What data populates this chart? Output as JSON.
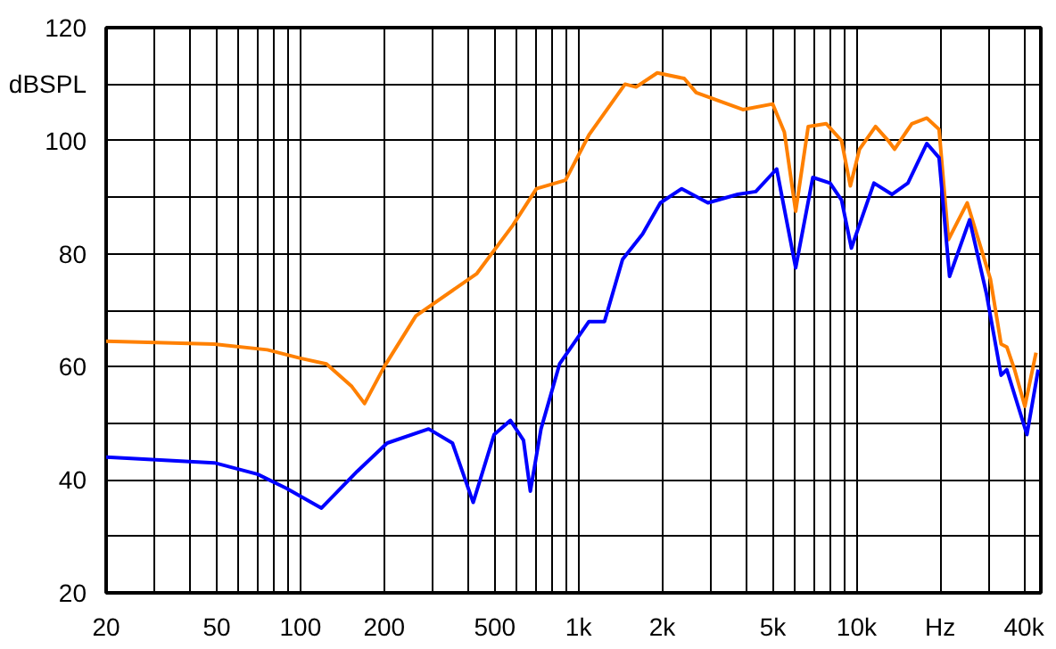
{
  "chart_data": {
    "type": "line",
    "ylabel": "dBSPL",
    "log": "x",
    "grid": true,
    "line_style": "solid",
    "marker": "none",
    "xlim": [
      20,
      46000
    ],
    "ylim": [
      20,
      120
    ],
    "xticks": [
      20,
      {
        "value": 30,
        "label": null
      },
      {
        "value": 40,
        "label": null
      },
      50,
      {
        "value": 60,
        "label": null
      },
      {
        "value": 70,
        "label": null
      },
      {
        "value": 80,
        "label": null
      },
      {
        "value": 90,
        "label": null
      },
      100,
      200,
      {
        "value": 300,
        "label": null
      },
      {
        "value": 400,
        "label": null
      },
      500,
      {
        "value": 600,
        "label": null
      },
      {
        "value": 700,
        "label": null
      },
      {
        "value": 800,
        "label": null
      },
      {
        "value": 900,
        "label": null
      },
      {
        "value": 1000,
        "label": "1k"
      },
      {
        "value": 2000,
        "label": "2k"
      },
      {
        "value": 3000,
        "label": null
      },
      {
        "value": 4000,
        "label": null
      },
      {
        "value": 5000,
        "label": "5k"
      },
      {
        "value": 6000,
        "label": null
      },
      {
        "value": 7000,
        "label": null
      },
      {
        "value": 8000,
        "label": null
      },
      {
        "value": 9000,
        "label": null
      },
      {
        "value": 10000,
        "label": "10k"
      },
      {
        "value": 20000,
        "label": "Hz"
      },
      {
        "value": 30000,
        "label": null
      },
      {
        "value": 40000,
        "label": "40k"
      }
    ],
    "yticks": [
      20,
      {
        "value": 30,
        "label": null
      },
      40,
      {
        "value": 50,
        "label": null
      },
      60,
      {
        "value": 70,
        "label": null
      },
      80,
      {
        "value": 90,
        "label": null
      },
      100,
      {
        "value": 110,
        "label": null
      },
      120
    ],
    "series": [
      {
        "color": "#ff8000",
        "x": [
          20,
          49,
          76,
          100,
          124,
          153,
          170,
          200,
          260,
          431,
          580,
          706,
          898,
          1090,
          1470,
          1610,
          1920,
          2400,
          2650,
          3900,
          4990,
          5500,
          6040,
          6700,
          7780,
          8830,
          9500,
          10250,
          11700,
          13000,
          13700,
          15800,
          17900,
          19800,
          21400,
          25000,
          30300,
          33100,
          34700,
          37000,
          40300,
          44200
        ],
        "values": [
          64.5,
          64,
          63,
          61.5,
          60.5,
          56.5,
          53.5,
          60,
          69,
          76.5,
          85,
          91.5,
          93,
          101,
          110,
          109.5,
          112,
          111,
          108.5,
          105.5,
          106.5,
          101.5,
          87.5,
          102.5,
          103,
          100,
          92,
          98.5,
          102.5,
          100,
          98.5,
          103,
          104,
          102,
          82.5,
          89,
          75.5,
          64,
          63.5,
          59.5,
          53,
          62.5
        ]
      },
      {
        "color": "#0000ff",
        "x": [
          20,
          49,
          70,
          89,
          119,
          160,
          205,
          289,
          352,
          418,
          497,
          569,
          634,
          671,
          733,
          855,
          1090,
          1240,
          1440,
          1700,
          1970,
          2350,
          2920,
          3740,
          4340,
          5160,
          6040,
          6960,
          8030,
          8830,
          9580,
          11550,
          13400,
          15300,
          17900,
          19800,
          21600,
          25500,
          29300,
          33100,
          34700,
          41000,
          45000
        ],
        "values": [
          44,
          43,
          41,
          38.5,
          35,
          41.5,
          46.5,
          49,
          46.5,
          36,
          48,
          50.5,
          47,
          38,
          49,
          60.5,
          68,
          68,
          79,
          83.5,
          89,
          91.5,
          89,
          90.5,
          91,
          95,
          77.5,
          93.5,
          92.5,
          89.5,
          81,
          92.5,
          90.5,
          92.5,
          99.5,
          97,
          76,
          86,
          73,
          58.5,
          59.5,
          48,
          59.5
        ]
      }
    ]
  }
}
